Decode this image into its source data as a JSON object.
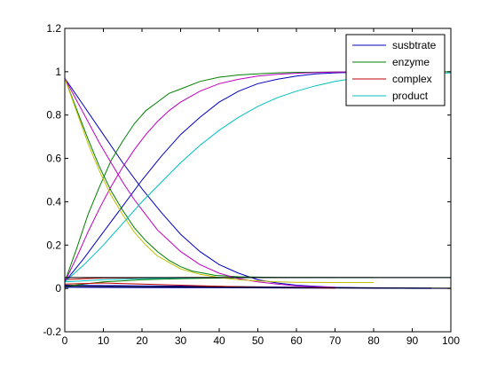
{
  "chart_data": {
    "type": "line",
    "title": "",
    "xlabel": "",
    "ylabel": "",
    "xlim": [
      0,
      100
    ],
    "ylim": [
      -0.2,
      1.2
    ],
    "grid": false,
    "legend_placement": "top-right",
    "x_ticks": [
      0,
      10,
      20,
      30,
      40,
      50,
      60,
      70,
      80,
      90,
      100
    ],
    "y_ticks": [
      -0.2,
      0,
      0.2,
      0.4,
      0.6,
      0.8,
      1,
      1.2
    ],
    "x_tick_labels": [
      "0",
      "10",
      "20",
      "30",
      "40",
      "50",
      "60",
      "70",
      "80",
      "90",
      "100"
    ],
    "y_tick_labels": [
      "-0.2",
      "0",
      "0.2",
      "0.4",
      "0.6",
      "0.8",
      "1",
      "1.2"
    ],
    "legend": [
      {
        "label": "susbtrate",
        "color": "#0000bf"
      },
      {
        "label": "enzyme",
        "color": "#008000"
      },
      {
        "label": "complex",
        "color": "#bf0000"
      },
      {
        "label": "product",
        "color": "#00bfbf"
      }
    ],
    "series": [
      {
        "color": "#0000bf",
        "x": [
          0,
          5,
          10,
          15,
          20,
          25,
          30,
          35,
          40,
          45,
          50,
          55,
          60,
          65,
          70,
          75,
          80,
          85,
          90,
          95
        ],
        "y": [
          0.97,
          0.84,
          0.71,
          0.58,
          0.46,
          0.35,
          0.25,
          0.17,
          0.11,
          0.07,
          0.04,
          0.025,
          0.015,
          0.01,
          0.005,
          0.003,
          0.002,
          0.001,
          0,
          0
        ]
      },
      {
        "color": "#0000bf",
        "x": [
          0,
          5,
          10,
          15,
          20,
          25,
          30,
          35,
          40,
          45,
          50,
          55,
          60,
          65,
          70,
          75,
          80,
          85,
          90,
          95
        ],
        "y": [
          0.03,
          0.14,
          0.26,
          0.38,
          0.5,
          0.61,
          0.71,
          0.79,
          0.86,
          0.91,
          0.945,
          0.965,
          0.98,
          0.99,
          0.995,
          0.997,
          0.998,
          0.999,
          1,
          1
        ]
      },
      {
        "color": "#0000bf",
        "x": [
          0,
          20,
          40,
          60,
          80,
          95
        ],
        "y": [
          0.015,
          0.012,
          0.009,
          0.006,
          0.003,
          0.002
        ]
      },
      {
        "color": "#0000bf",
        "x": [
          0,
          20,
          40,
          60,
          80,
          100
        ],
        "y": [
          0.005,
          0.004,
          0.003,
          0.002,
          0.001,
          0
        ]
      },
      {
        "color": "#008000",
        "x": [
          0,
          3,
          6,
          9,
          12,
          15,
          18,
          21,
          24,
          27,
          30,
          33,
          36,
          39,
          42,
          45,
          50,
          55,
          60,
          65,
          70
        ],
        "y": [
          0.97,
          0.83,
          0.69,
          0.56,
          0.45,
          0.36,
          0.28,
          0.22,
          0.17,
          0.13,
          0.1,
          0.08,
          0.07,
          0.06,
          0.057,
          0.054,
          0.052,
          0.051,
          0.05,
          0.05,
          0.05
        ]
      },
      {
        "color": "#008000",
        "x": [
          0,
          3,
          6,
          9,
          12,
          15,
          18,
          21,
          24,
          27,
          30,
          35,
          40,
          45,
          50,
          55,
          60,
          70,
          80,
          100
        ],
        "y": [
          0.03,
          0.18,
          0.34,
          0.47,
          0.59,
          0.68,
          0.76,
          0.82,
          0.86,
          0.9,
          0.92,
          0.955,
          0.975,
          0.985,
          0.99,
          0.995,
          0.997,
          0.999,
          1,
          1
        ]
      },
      {
        "color": "#008000",
        "x": [
          0,
          10,
          20,
          30,
          40,
          50,
          60,
          70,
          80
        ],
        "y": [
          0.01,
          0.03,
          0.04,
          0.045,
          0.048,
          0.05,
          0.05,
          0.05,
          0.05
        ]
      },
      {
        "color": "#bf0000",
        "x": [
          0,
          5,
          10,
          20,
          30,
          40,
          50,
          60,
          80,
          100
        ],
        "y": [
          0.04,
          0.045,
          0.048,
          0.049,
          0.05,
          0.05,
          0.05,
          0.05,
          0.05,
          0.05
        ]
      },
      {
        "color": "#bf0000",
        "x": [
          0,
          10,
          20,
          30,
          40,
          50,
          60,
          70
        ],
        "y": [
          0.02,
          0.025,
          0.02,
          0.015,
          0.01,
          0.006,
          0.003,
          0.001
        ]
      },
      {
        "color": "#bf00bf",
        "x": [
          0,
          3,
          6,
          9,
          12,
          15,
          18,
          21,
          24,
          27,
          30,
          35,
          40,
          45,
          50,
          55,
          60,
          65,
          70
        ],
        "y": [
          0.97,
          0.87,
          0.77,
          0.67,
          0.58,
          0.49,
          0.41,
          0.34,
          0.27,
          0.22,
          0.17,
          0.11,
          0.07,
          0.045,
          0.03,
          0.02,
          0.012,
          0.008,
          0.005
        ]
      },
      {
        "color": "#bf00bf",
        "x": [
          0,
          3,
          6,
          9,
          12,
          15,
          18,
          21,
          24,
          27,
          30,
          35,
          40,
          45,
          50,
          55,
          60,
          65,
          70,
          80
        ],
        "y": [
          0.03,
          0.14,
          0.26,
          0.37,
          0.47,
          0.56,
          0.64,
          0.71,
          0.77,
          0.82,
          0.86,
          0.91,
          0.945,
          0.965,
          0.98,
          0.988,
          0.993,
          0.996,
          0.998,
          1
        ]
      },
      {
        "color": "#bfbf00",
        "x": [
          0,
          3,
          6,
          9,
          12,
          15,
          18,
          21,
          24,
          27,
          30,
          35,
          40,
          45,
          50,
          55,
          60,
          70,
          80
        ],
        "y": [
          0.97,
          0.82,
          0.67,
          0.54,
          0.43,
          0.34,
          0.26,
          0.2,
          0.15,
          0.12,
          0.09,
          0.065,
          0.05,
          0.04,
          0.035,
          0.03,
          0.028,
          0.027,
          0.027
        ]
      },
      {
        "color": "#00bfbf",
        "x": [
          0,
          5,
          10,
          15,
          20,
          25,
          30,
          35,
          40,
          45,
          50,
          55,
          60,
          65,
          70,
          75,
          80,
          85,
          90,
          100
        ],
        "y": [
          0.03,
          0.11,
          0.2,
          0.3,
          0.4,
          0.49,
          0.58,
          0.66,
          0.73,
          0.79,
          0.84,
          0.88,
          0.91,
          0.935,
          0.955,
          0.97,
          0.98,
          0.986,
          0.99,
          0.995
        ]
      },
      {
        "color": "#00bfbf",
        "x": [
          0,
          10,
          20,
          30,
          40,
          50,
          60,
          70,
          80,
          90,
          100
        ],
        "y": [
          0.03,
          0.04,
          0.045,
          0.048,
          0.05,
          0.05,
          0.05,
          0.05,
          0.05,
          0.05,
          0.05
        ]
      },
      {
        "color": "#000000",
        "x": [
          0,
          20,
          40,
          60,
          80,
          100
        ],
        "y": [
          0.05,
          0.05,
          0.05,
          0.05,
          0.05,
          0.05
        ]
      },
      {
        "color": "#000000",
        "x": [
          0,
          20,
          40,
          60,
          80,
          100
        ],
        "y": [
          0.01,
          0.008,
          0.006,
          0.004,
          0.002,
          0.001
        ]
      }
    ]
  }
}
